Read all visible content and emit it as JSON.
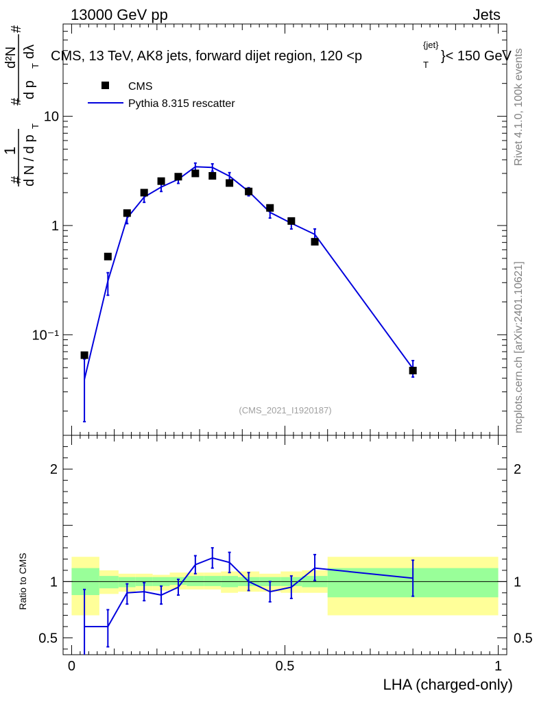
{
  "header": {
    "left": "13000 GeV pp",
    "right": "Jets"
  },
  "side_text": {
    "rivet": "Rivet 4.1.0,  100k events",
    "mcplots": "mcplots.cern.ch [arXiv:2401.10621]"
  },
  "chart_data": [
    {
      "type": "scatter",
      "title_parts": {
        "pre": "CMS, 13 TeV, AK8 jets, forward dijet region, 120 <p",
        "sup": "{jet}",
        "sub": "T",
        "post": "}< 150 GeV"
      },
      "ylabel_parts": {
        "hash1": "#",
        "one": "1",
        "hash2": "#",
        "denom": "d N / d p",
        "denom_sub": "T",
        "d2n": "d²N",
        "mid": "d p",
        "mid_sub": "T",
        "dlam": "dλ",
        "hash3": "#"
      },
      "yscale": "log",
      "ylim": [
        0.012,
        70
      ],
      "xlim": [
        -0.02,
        1.02
      ],
      "ytick_labels": [
        "10",
        "1",
        "10⁻¹"
      ],
      "ytick_values": [
        10,
        1,
        0.1
      ],
      "watermark": "(CMS_2021_I1920187)",
      "legend": [
        {
          "label": "CMS",
          "marker": "square",
          "color": "#000000"
        },
        {
          "label": "Pythia 8.315 rescatter",
          "marker": "line",
          "color": "#0000dd"
        }
      ],
      "legend_position": "top-left",
      "series": [
        {
          "name": "CMS",
          "x": [
            0.03,
            0.085,
            0.13,
            0.17,
            0.21,
            0.25,
            0.29,
            0.33,
            0.37,
            0.415,
            0.465,
            0.515,
            0.57,
            0.8
          ],
          "values": [
            0.065,
            0.52,
            1.3,
            2.0,
            2.55,
            2.8,
            3.0,
            2.85,
            2.45,
            2.05,
            1.45,
            1.1,
            0.71,
            0.047
          ]
        },
        {
          "name": "Pythia 8.315 rescatter",
          "x": [
            0.03,
            0.085,
            0.13,
            0.17,
            0.21,
            0.25,
            0.29,
            0.33,
            0.37,
            0.415,
            0.465,
            0.515,
            0.57,
            0.8
          ],
          "values": [
            0.039,
            0.31,
            1.17,
            1.82,
            2.25,
            2.65,
            3.45,
            3.4,
            2.83,
            2.05,
            1.32,
            1.05,
            0.83,
            0.049
          ],
          "err_low": [
            0.023,
            0.08,
            0.13,
            0.19,
            0.2,
            0.22,
            0.26,
            0.26,
            0.24,
            0.18,
            0.15,
            0.12,
            0.1,
            0.008
          ],
          "err_high": [
            0.021,
            0.06,
            0.1,
            0.18,
            0.2,
            0.22,
            0.28,
            0.27,
            0.22,
            0.17,
            0.14,
            0.11,
            0.1,
            0.009
          ]
        }
      ]
    },
    {
      "type": "line",
      "ylabel": "Ratio to CMS",
      "xlabel": "LHA (charged-only)",
      "ylim": [
        0.35,
        2.3
      ],
      "xlim": [
        -0.02,
        1.02
      ],
      "xtick_labels": [
        "0",
        "0.5",
        "1"
      ],
      "xtick_values": [
        0,
        0.5,
        1
      ],
      "ytick_labels": [
        "2",
        "1",
        "0.5"
      ],
      "ytick_values": [
        2,
        1,
        0.5
      ],
      "reference_line": 1,
      "bands": {
        "bin_edges": [
          0,
          0.065,
          0.11,
          0.15,
          0.19,
          0.23,
          0.27,
          0.31,
          0.35,
          0.39,
          0.44,
          0.49,
          0.54,
          0.6,
          1.0
        ],
        "outer_low": [
          0.7,
          0.89,
          0.91,
          0.92,
          0.92,
          0.93,
          0.93,
          0.93,
          0.9,
          0.91,
          0.91,
          0.9,
          0.9,
          0.7
        ],
        "outer_high": [
          1.22,
          1.1,
          1.07,
          1.07,
          1.06,
          1.08,
          1.08,
          1.08,
          1.09,
          1.09,
          1.07,
          1.09,
          1.1,
          1.22
        ],
        "inner_low": [
          0.88,
          0.94,
          0.95,
          0.96,
          0.96,
          0.97,
          0.96,
          0.96,
          0.95,
          0.96,
          0.96,
          0.96,
          0.95,
          0.86
        ],
        "inner_high": [
          1.12,
          1.05,
          1.04,
          1.04,
          1.04,
          1.04,
          1.05,
          1.05,
          1.05,
          1.04,
          1.04,
          1.04,
          1.05,
          1.12
        ],
        "outer_color": "#ffff99",
        "inner_color": "#99ff99"
      },
      "series": [
        {
          "name": "Pythia 8.315 rescatter / CMS",
          "x": [
            0.03,
            0.085,
            0.13,
            0.17,
            0.21,
            0.25,
            0.29,
            0.33,
            0.37,
            0.415,
            0.465,
            0.515,
            0.57,
            0.8
          ],
          "values": [
            0.6,
            0.6,
            0.9,
            0.91,
            0.88,
            0.95,
            1.15,
            1.21,
            1.17,
            1.0,
            0.91,
            0.95,
            1.12,
            1.03
          ],
          "err_low": [
            0.33,
            0.18,
            0.1,
            0.08,
            0.08,
            0.07,
            0.08,
            0.09,
            0.09,
            0.08,
            0.09,
            0.1,
            0.11,
            0.16
          ],
          "err_high": [
            0.33,
            0.15,
            0.08,
            0.08,
            0.08,
            0.07,
            0.08,
            0.09,
            0.09,
            0.08,
            0.09,
            0.1,
            0.12,
            0.16
          ],
          "color": "#0000dd"
        }
      ]
    }
  ]
}
